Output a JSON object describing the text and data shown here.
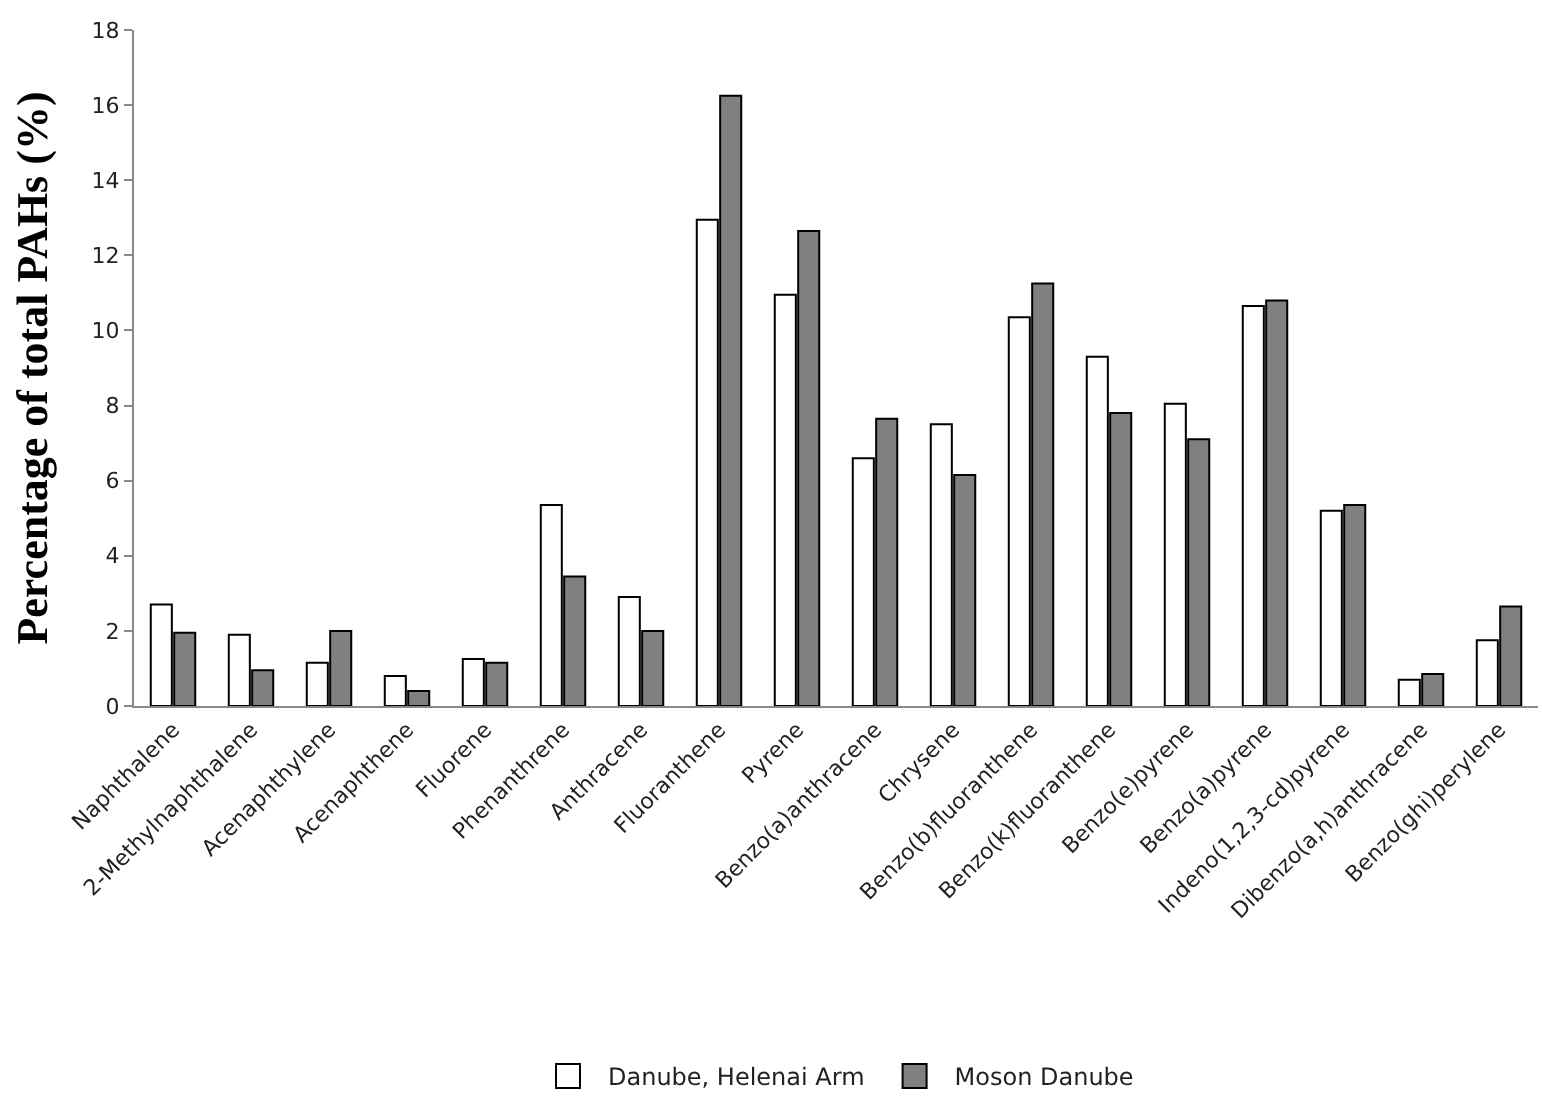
{
  "chart_data": {
    "type": "bar",
    "ylabel": "Percentage of total PAHs (%)",
    "categories": [
      "Naphthalene",
      "2-Methylnaphthalene",
      "Acenaphthylene",
      "Acenaphthene",
      "Fluorene",
      "Phenanthrene",
      "Anthracene",
      "Fluoranthene",
      "Pyrene",
      "Benzo(a)anthracene",
      "Chrysene",
      "Benzo(b)fluoranthene",
      "Benzo(k)fluoranthene",
      "Benzo(e)pyrene",
      "Benzo(a)pyrene",
      "Indeno(1,2,3-cd)pyrene",
      "Dibenzo(a,h)anthracene",
      "Benzo(ghi)perylene"
    ],
    "series": [
      {
        "name": "Danube, Helenai Arm",
        "color": "#ffffff",
        "values": [
          2.7,
          1.9,
          1.15,
          0.8,
          1.25,
          5.35,
          2.9,
          12.95,
          10.95,
          6.6,
          7.5,
          10.35,
          9.3,
          8.05,
          10.65,
          5.2,
          0.7,
          1.75
        ]
      },
      {
        "name": "Moson Danube",
        "color": "#808080",
        "values": [
          1.95,
          0.95,
          2.0,
          0.4,
          1.15,
          3.45,
          2.0,
          16.25,
          12.65,
          7.65,
          6.15,
          11.25,
          7.8,
          7.1,
          10.8,
          5.35,
          0.85,
          2.65
        ]
      }
    ],
    "ylim": [
      0,
      18
    ],
    "yticks": [
      0,
      2,
      4,
      6,
      8,
      10,
      12,
      14,
      16,
      18
    ],
    "legend": "bottom"
  }
}
